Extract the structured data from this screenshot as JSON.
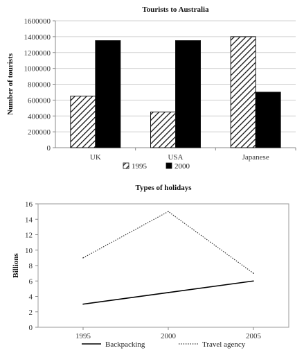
{
  "chart_data": [
    {
      "type": "bar",
      "title": "Tourists to Australia",
      "xlabel": "",
      "ylabel": "Number of tourists",
      "ylim": [
        0,
        1600000
      ],
      "yticks": [
        "0",
        "200000",
        "400000",
        "600000",
        "800000",
        "1000000",
        "1200000",
        "1400000",
        "1600000"
      ],
      "categories": [
        "UK",
        "USA",
        "Japanese"
      ],
      "series": [
        {
          "name": "1995",
          "values": [
            650000,
            450000,
            1400000
          ],
          "pattern": "hatch",
          "color": "#1a1a1a"
        },
        {
          "name": "2000",
          "values": [
            1350000,
            1350000,
            700000
          ],
          "pattern": "solid",
          "color": "#000000"
        }
      ],
      "grid": true,
      "legend": "bottom"
    },
    {
      "type": "line",
      "title": "Types of holidays",
      "xlabel": "",
      "ylabel": "Billions",
      "ylim": [
        0,
        16
      ],
      "yticks": [
        "0",
        "2",
        "4",
        "6",
        "8",
        "10",
        "12",
        "14",
        "16"
      ],
      "categories": [
        "1995",
        "2000",
        "2005"
      ],
      "series": [
        {
          "name": "Backpacking",
          "values": [
            3,
            4.5,
            6
          ],
          "style": "solid",
          "color": "#000000"
        },
        {
          "name": "Travel agency",
          "values": [
            9,
            15,
            7
          ],
          "style": "dotted",
          "color": "#333333"
        }
      ],
      "grid": false,
      "legend": "bottom"
    }
  ]
}
